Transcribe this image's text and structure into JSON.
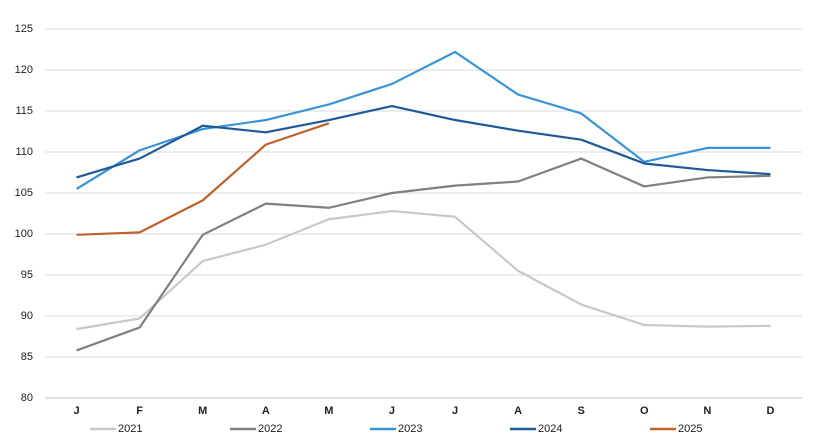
{
  "chart_data": {
    "type": "line",
    "categories": [
      "J",
      "F",
      "M",
      "A",
      "M",
      "J",
      "J",
      "A",
      "S",
      "O",
      "N",
      "D"
    ],
    "series": [
      {
        "name": "2021",
        "color": "#c8c8c8",
        "values": [
          88.4,
          89.7,
          96.7,
          98.7,
          101.8,
          102.8,
          102.1,
          95.5,
          91.4,
          88.9,
          88.7,
          88.8
        ]
      },
      {
        "name": "2022",
        "color": "#808080",
        "values": [
          85.8,
          88.6,
          99.9,
          103.7,
          103.2,
          105.0,
          105.9,
          106.4,
          109.2,
          105.8,
          106.9,
          107.1
        ]
      },
      {
        "name": "2023",
        "color": "#3a93d4",
        "values": [
          105.5,
          110.2,
          112.8,
          113.9,
          115.8,
          118.3,
          122.2,
          117.0,
          114.7,
          108.8,
          110.5,
          110.5
        ]
      },
      {
        "name": "2024",
        "color": "#1f5a96",
        "values": [
          106.9,
          109.2,
          113.2,
          112.4,
          113.9,
          115.6,
          113.9,
          112.6,
          111.5,
          108.6,
          107.8,
          107.3
        ]
      },
      {
        "name": "2025",
        "color": "#c0602a",
        "values": [
          99.9,
          100.2,
          104.1,
          110.9,
          113.5,
          null,
          null,
          null,
          null,
          null,
          null,
          null
        ]
      }
    ],
    "ylim": [
      80,
      125
    ],
    "yticks": [
      80,
      85,
      90,
      95,
      100,
      105,
      110,
      115,
      120,
      125
    ],
    "grid": true,
    "legend": "bottom"
  }
}
